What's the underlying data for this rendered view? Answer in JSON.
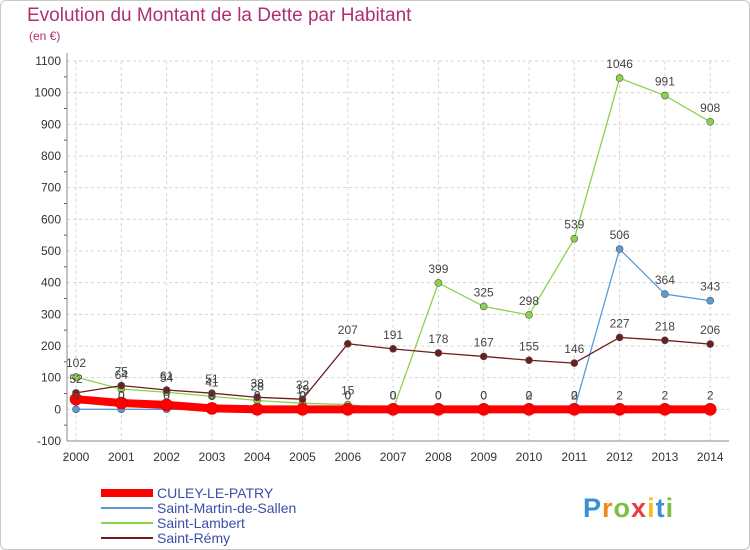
{
  "chart_data": {
    "type": "line",
    "title": "Evolution du Montant de la Dette par Habitant",
    "ylabel": "(en €)",
    "xlabel": "",
    "x": [
      "2000",
      "2001",
      "2002",
      "2003",
      "2004",
      "2005",
      "2006",
      "2007",
      "2008",
      "2009",
      "2010",
      "2011",
      "2012",
      "2013",
      "2014"
    ],
    "ylim": [
      -100,
      1100
    ],
    "yticks": [
      "-100",
      "0",
      "100",
      "200",
      "300",
      "400",
      "500",
      "600",
      "700",
      "800",
      "900",
      "1000",
      "1100"
    ],
    "grid": true,
    "legend_position": "bottom-left",
    "series": [
      {
        "name": "CULEY-LE-PATRY",
        "color": "#ff0000",
        "label_color": "#3c4ea8",
        "values": [
          32,
          20,
          14,
          3,
          0,
          0,
          0,
          0,
          0,
          0,
          0,
          0,
          0,
          0,
          0
        ],
        "show_labels": false
      },
      {
        "name": "Saint-Martin-de-Sallen",
        "color": "#5b9bd5",
        "values": [
          0,
          0,
          0,
          0,
          0,
          0,
          0,
          0,
          0,
          0,
          0,
          0,
          506,
          364,
          343
        ],
        "labels": [
          "0",
          "0",
          "0",
          "0",
          "0",
          "0",
          "0",
          "0",
          "0",
          "0",
          "0",
          "0",
          "506",
          "364",
          "343"
        ],
        "show_labels": true
      },
      {
        "name": "Saint-Lambert",
        "color": "#8bd34b",
        "values": [
          102,
          64,
          54,
          41,
          28,
          19,
          15,
          0,
          399,
          325,
          298,
          539,
          1046,
          991,
          908
        ],
        "labels": [
          "102",
          "64",
          "54",
          "41",
          "28",
          "19",
          "15",
          "0",
          "399",
          "325",
          "298",
          "539",
          "1046",
          "991",
          "908"
        ],
        "show_labels": true
      },
      {
        "name": "Saint-Rémy",
        "color": "#6e1e1e",
        "values": [
          52,
          75,
          61,
          51,
          38,
          32,
          207,
          191,
          178,
          167,
          155,
          146,
          227,
          218,
          206
        ],
        "labels": [
          "52",
          "75",
          "61",
          "51",
          "38",
          "32",
          "207",
          "191",
          "178",
          "167",
          "155",
          "146",
          "227",
          "218",
          "206"
        ],
        "show_labels": true
      }
    ],
    "extra_labels": [
      {
        "x": "2000",
        "text": "0"
      },
      {
        "x": "2001",
        "text": "0"
      },
      {
        "x": "2002",
        "text": "0"
      },
      {
        "x": "2003",
        "text": "0"
      },
      {
        "x": "2004",
        "text": "0"
      },
      {
        "x": "2005",
        "text": "0"
      },
      {
        "x": "2006",
        "text": "0"
      },
      {
        "x": "2007",
        "text": "0"
      },
      {
        "x": "2008",
        "text": "0"
      },
      {
        "x": "2009",
        "text": "0"
      },
      {
        "x": "2010",
        "text": "2"
      },
      {
        "x": "2011",
        "text": "2"
      },
      {
        "x": "2012",
        "text": "2"
      },
      {
        "x": "2013",
        "text": "2"
      },
      {
        "x": "2014",
        "text": "2"
      }
    ]
  },
  "brand": {
    "logo_letters": [
      "P",
      "r",
      "o",
      "x",
      "i",
      "t",
      "i"
    ],
    "logo_colors": [
      "#3a8fd8",
      "#f08a1c",
      "#7cc142",
      "#e83d3d",
      "#f2c21b",
      "#3a8fd8",
      "#7cc142"
    ]
  }
}
